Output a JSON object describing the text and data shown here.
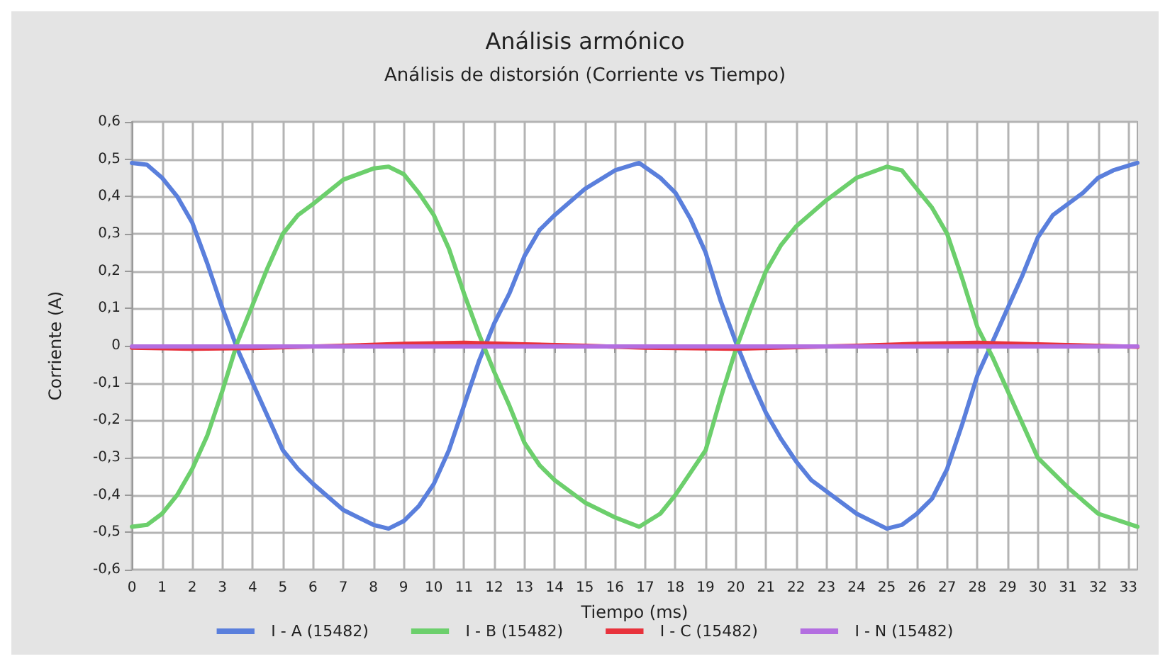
{
  "chart_data": {
    "type": "line",
    "title": "Análisis armónico",
    "subtitle": "Análisis de distorsión (Corriente vs Tiempo)",
    "xlabel": "Tiempo (ms)",
    "ylabel": "Corriente (A)",
    "xlim": [
      0,
      33.3
    ],
    "xticks": [
      0,
      1,
      2,
      3,
      4,
      5,
      6,
      7,
      8,
      9,
      10,
      11,
      12,
      13,
      14,
      15,
      16,
      17,
      18,
      19,
      20,
      21,
      22,
      23,
      24,
      25,
      26,
      27,
      28,
      29,
      30,
      31,
      32,
      33
    ],
    "ylim": [
      -0.6,
      0.6
    ],
    "yticks": [
      {
        "value": -0.6,
        "label": "-0,6"
      },
      {
        "value": -0.5,
        "label": "-0,5"
      },
      {
        "value": -0.4,
        "label": "-0,4"
      },
      {
        "value": -0.3,
        "label": "-0,3"
      },
      {
        "value": -0.2,
        "label": "-0,2"
      },
      {
        "value": -0.1,
        "label": "-0,1"
      },
      0,
      {
        "value": 0.1,
        "label": "0,1"
      },
      {
        "value": 0.2,
        "label": "0,2"
      },
      {
        "value": 0.3,
        "label": "0,3"
      },
      {
        "value": 0.4,
        "label": "0,4"
      },
      {
        "value": 0.5,
        "label": "0,5"
      },
      {
        "value": 0.6,
        "label": "0,6"
      }
    ],
    "grid": true,
    "legend": "bottom",
    "marker": "none",
    "line_style": "solid",
    "series": [
      {
        "name": "I - A (15482)",
        "color": "#5a7fdc",
        "x": [
          0,
          0.5,
          1,
          1.5,
          2,
          2.5,
          3,
          3.5,
          4,
          4.5,
          5,
          5.5,
          6,
          7,
          8,
          8.5,
          9,
          9.5,
          10,
          10.5,
          11,
          11.5,
          12,
          12.5,
          13,
          13.5,
          14,
          15,
          16,
          16.8,
          17.5,
          18,
          18.5,
          19,
          19.5,
          20,
          20.5,
          21,
          21.5,
          22,
          22.5,
          23,
          24,
          25,
          25.5,
          26,
          26.5,
          27,
          27.5,
          28,
          28.5,
          29,
          29.5,
          30,
          30.5,
          31,
          31.5,
          32,
          32.5,
          33.3
        ],
        "values": [
          0.49,
          0.485,
          0.45,
          0.4,
          0.33,
          0.22,
          0.1,
          -0.01,
          -0.1,
          -0.19,
          -0.28,
          -0.33,
          -0.37,
          -0.44,
          -0.48,
          -0.49,
          -0.47,
          -0.43,
          -0.37,
          -0.28,
          -0.16,
          -0.04,
          0.06,
          0.14,
          0.24,
          0.31,
          0.35,
          0.42,
          0.47,
          0.49,
          0.45,
          0.41,
          0.34,
          0.25,
          0.12,
          0.01,
          -0.09,
          -0.18,
          -0.25,
          -0.31,
          -0.36,
          -0.39,
          -0.45,
          -0.49,
          -0.48,
          -0.45,
          -0.41,
          -0.33,
          -0.21,
          -0.08,
          0.01,
          0.1,
          0.19,
          0.29,
          0.35,
          0.38,
          0.41,
          0.45,
          0.47,
          0.49
        ]
      },
      {
        "name": "I - B (15482)",
        "color": "#6ccf6c",
        "x": [
          0,
          0.5,
          1,
          1.5,
          2,
          2.5,
          3,
          3.5,
          4,
          4.5,
          5,
          5.5,
          6,
          7,
          8,
          8.5,
          9,
          9.5,
          10,
          10.5,
          11,
          11.5,
          12,
          12.5,
          13,
          13.5,
          14,
          15,
          16,
          16.8,
          17.5,
          18,
          18.5,
          19,
          19.5,
          20,
          20.5,
          21,
          21.5,
          22,
          23,
          24,
          25,
          25.5,
          26,
          26.5,
          27,
          27.5,
          28,
          28.5,
          29,
          29.5,
          30,
          31,
          32,
          33.3
        ],
        "values": [
          -0.485,
          -0.48,
          -0.45,
          -0.4,
          -0.33,
          -0.24,
          -0.12,
          0.01,
          0.11,
          0.21,
          0.3,
          0.35,
          0.38,
          0.445,
          0.475,
          0.48,
          0.46,
          0.41,
          0.35,
          0.26,
          0.14,
          0.03,
          -0.07,
          -0.16,
          -0.26,
          -0.32,
          -0.36,
          -0.42,
          -0.46,
          -0.485,
          -0.45,
          -0.4,
          -0.34,
          -0.28,
          -0.14,
          -0.01,
          0.1,
          0.2,
          0.27,
          0.32,
          0.39,
          0.45,
          0.48,
          0.47,
          0.42,
          0.37,
          0.3,
          0.18,
          0.05,
          -0.03,
          -0.12,
          -0.21,
          -0.3,
          -0.38,
          -0.45,
          -0.485
        ]
      },
      {
        "name": "I - C (15482)",
        "color": "#e8323c",
        "x": [
          0,
          2,
          4,
          7,
          9,
          11,
          13,
          15,
          17,
          20,
          22,
          24,
          26,
          28,
          30,
          33.3
        ],
        "values": [
          -0.005,
          -0.008,
          -0.006,
          0,
          0.005,
          0.008,
          0.004,
          0,
          -0.005,
          -0.008,
          -0.004,
          0,
          0.005,
          0.008,
          0.004,
          -0.003
        ]
      },
      {
        "name": "I - N (15482)",
        "color": "#b36ee0",
        "x": [
          0,
          33.3
        ],
        "values": [
          -0.002,
          -0.002
        ]
      }
    ]
  }
}
